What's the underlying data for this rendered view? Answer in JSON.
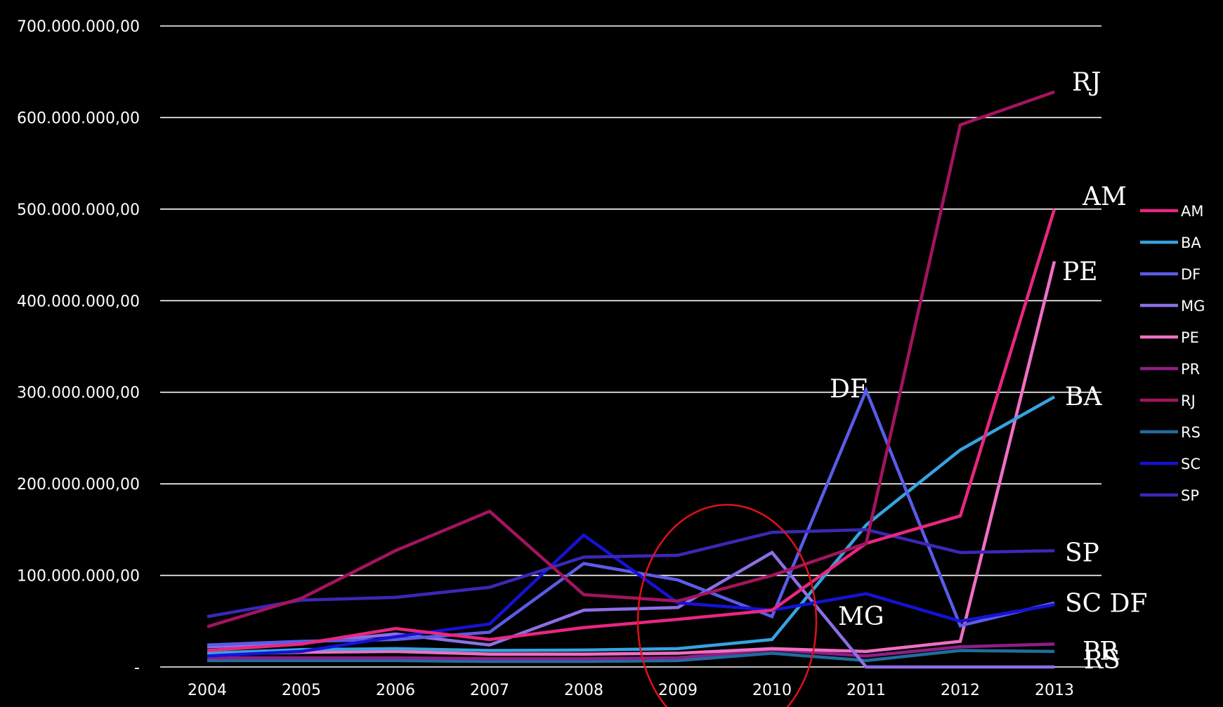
{
  "chart_data": {
    "type": "line",
    "title": "",
    "xlabel": "",
    "ylabel": "",
    "x": [
      "2004",
      "2005",
      "2006",
      "2007",
      "2008",
      "2009",
      "2010",
      "2011",
      "2012",
      "2013"
    ],
    "ylim": [
      0,
      700000000
    ],
    "y_ticks": [
      {
        "value": 0,
        "label": "-"
      },
      {
        "value": 100000000,
        "label": "100.000.000,00"
      },
      {
        "value": 200000000,
        "label": "200.000.000,00"
      },
      {
        "value": 300000000,
        "label": "300.000.000,00"
      },
      {
        "value": 400000000,
        "label": "400.000.000,00"
      },
      {
        "value": 500000000,
        "label": "500.000.000,00"
      },
      {
        "value": 600000000,
        "label": "600.000.000,00"
      },
      {
        "value": 700000000,
        "label": "700.000.000,00"
      }
    ],
    "grid": true,
    "legend_position": "right",
    "series": [
      {
        "name": "AM",
        "color": "#e8277f",
        "values": [
          18000000,
          25000000,
          42000000,
          30000000,
          43000000,
          52000000,
          62000000,
          135000000,
          165000000,
          500000000
        ]
      },
      {
        "name": "BA",
        "color": "#36a3e0",
        "values": [
          15000000,
          19000000,
          20000000,
          18000000,
          18500000,
          20000000,
          30000000,
          155000000,
          237000000,
          295000000
        ]
      },
      {
        "name": "DF",
        "color": "#5b5be8",
        "values": [
          24000000,
          28000000,
          30000000,
          38000000,
          113000000,
          95000000,
          55000000,
          302000000,
          45000000,
          70000000
        ]
      },
      {
        "name": "MG",
        "color": "#8c6fe6",
        "values": [
          22000000,
          26000000,
          36000000,
          24000000,
          62000000,
          65000000,
          125000000,
          0,
          0,
          0
        ]
      },
      {
        "name": "PE",
        "color": "#ef6fc4",
        "values": [
          14000000,
          16000000,
          17000000,
          14000000,
          14000000,
          15000000,
          20000000,
          17000000,
          28000000,
          443000000
        ]
      },
      {
        "name": "PR",
        "color": "#8e1e86",
        "values": [
          10000000,
          10000000,
          10000000,
          9000000,
          9000000,
          10000000,
          19000000,
          12000000,
          22000000,
          25000000
        ]
      },
      {
        "name": "RJ",
        "color": "#a3145e",
        "values": [
          44000000,
          75000000,
          127000000,
          170000000,
          79000000,
          72000000,
          100000000,
          135000000,
          592000000,
          628000000
        ]
      },
      {
        "name": "RS",
        "color": "#1f6d9e",
        "values": [
          7000000,
          7000000,
          7000000,
          6000000,
          6000000,
          7000000,
          15000000,
          7000000,
          18000000,
          17000000
        ]
      },
      {
        "name": "SC",
        "color": "#1512d6",
        "values": [
          12000000,
          17000000,
          33000000,
          47000000,
          144000000,
          70000000,
          62000000,
          80000000,
          50000000,
          68000000
        ]
      },
      {
        "name": "SP",
        "color": "#3a28b8",
        "values": [
          55000000,
          73000000,
          76000000,
          87000000,
          120000000,
          122000000,
          147000000,
          150000000,
          125000000,
          127000000
        ]
      }
    ],
    "annotations": [
      {
        "text": "RJ",
        "series": "RJ"
      },
      {
        "text": "AM",
        "series": "AM"
      },
      {
        "text": "PE",
        "series": "PE"
      },
      {
        "text": "DF",
        "series": "DF",
        "at_year": "2011"
      },
      {
        "text": "BA",
        "series": "BA"
      },
      {
        "text": "SP",
        "series": "SP"
      },
      {
        "text": "MG",
        "series": "MG",
        "at_year": "2011"
      },
      {
        "text": "SC  DF",
        "series": "SC"
      },
      {
        "text": "PR",
        "series": "PR"
      },
      {
        "text": "RS",
        "series": "RS"
      }
    ],
    "highlight_ellipse": {
      "around_years": [
        "2009",
        "2010"
      ],
      "color": "#e0101a"
    }
  }
}
